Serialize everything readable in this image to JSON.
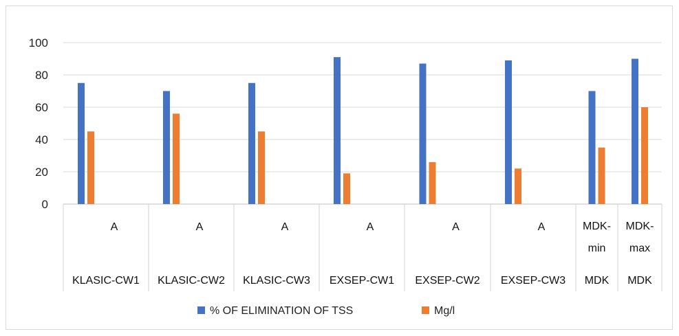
{
  "chart_data": {
    "type": "bar",
    "categories": [
      {
        "top": "A",
        "bottom": "KLASIC-CW1"
      },
      {
        "top": "A",
        "bottom": "KLASIC-CW2"
      },
      {
        "top": "A",
        "bottom": "KLASIC-CW3"
      },
      {
        "top": "A",
        "bottom": "EXSEP-CW1"
      },
      {
        "top": "A",
        "bottom": "EXSEP-CW2"
      },
      {
        "top": "A",
        "bottom": "EXSEP-CW3"
      },
      {
        "top": "MDK-min",
        "bottom": "MDK"
      },
      {
        "top": "MDK-max",
        "bottom": "MDK"
      }
    ],
    "series": [
      {
        "name": "% OF ELIMINATION OF TSS",
        "color": "#4472C4",
        "values": [
          75,
          70,
          75,
          91,
          87,
          89,
          70,
          90
        ]
      },
      {
        "name": "Mg/l",
        "color": "#ED7D31",
        "values": [
          45,
          56,
          45,
          19,
          26,
          22,
          35,
          60
        ]
      }
    ],
    "ylim": [
      0,
      100
    ],
    "yticks": [
      "0",
      "20",
      "40",
      "60",
      "80",
      "100"
    ],
    "grid": true,
    "legend_position": "bottom"
  }
}
